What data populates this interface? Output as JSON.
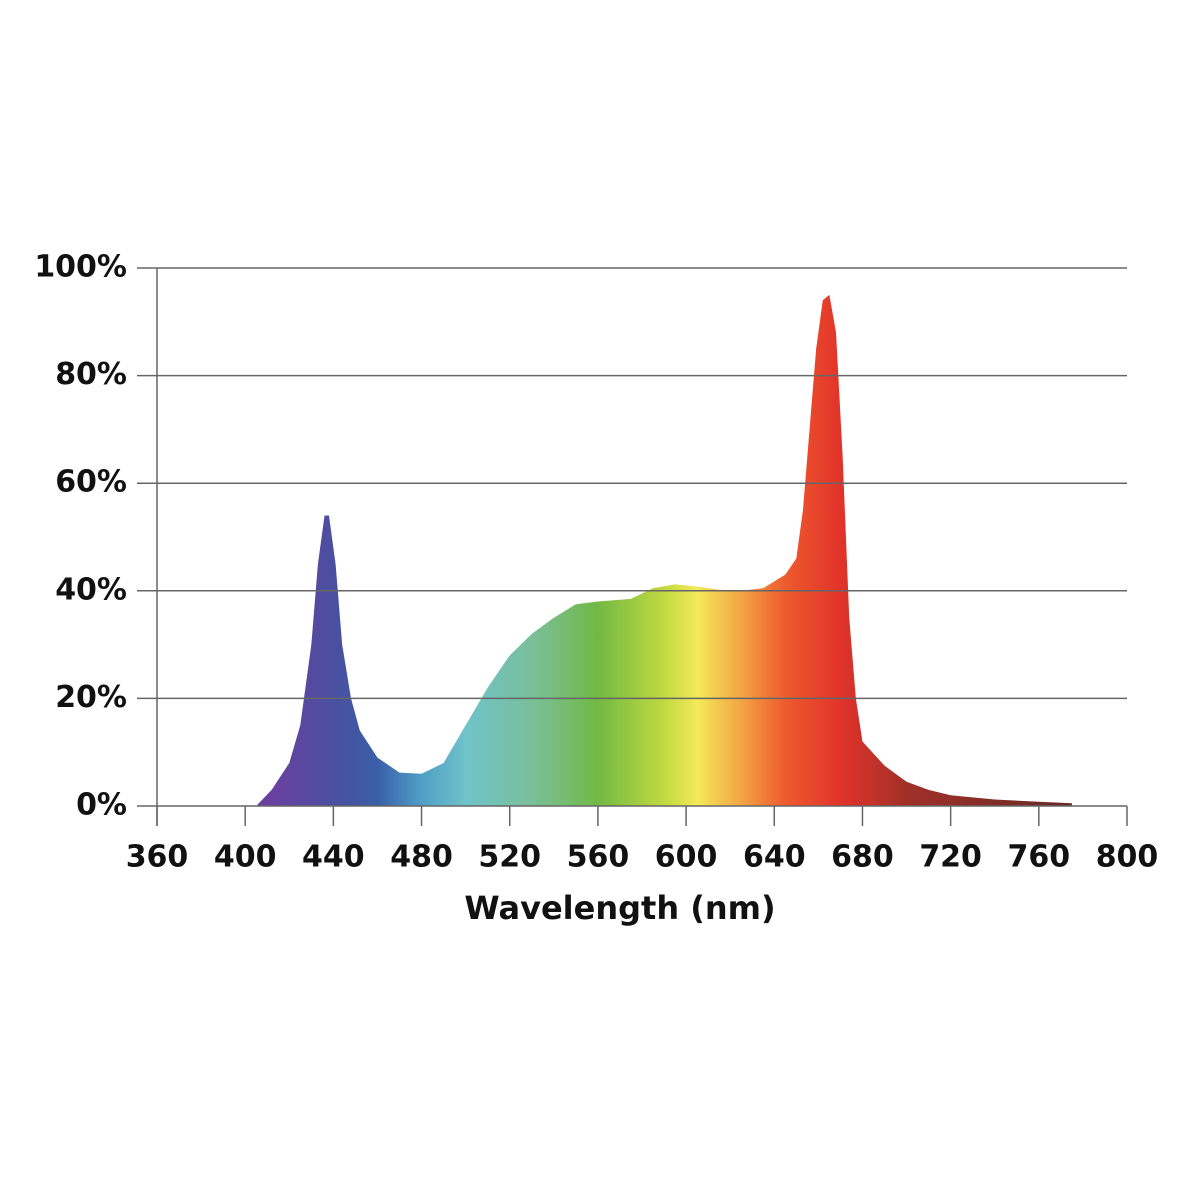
{
  "chart_data": {
    "type": "area",
    "x_label": "Wavelength (nm)",
    "x": [
      405,
      412,
      420,
      425,
      430,
      433,
      436,
      438,
      441,
      444,
      448,
      452,
      460,
      470,
      480,
      490,
      500,
      510,
      520,
      530,
      540,
      550,
      560,
      575,
      585,
      595,
      605,
      615,
      625,
      635,
      645,
      650,
      653,
      656,
      659,
      662,
      665,
      668,
      671,
      674,
      677,
      680,
      690,
      700,
      710,
      720,
      740,
      760,
      775
    ],
    "values": [
      0,
      3,
      8,
      15,
      30,
      45,
      54,
      54,
      45,
      30,
      20,
      14,
      9,
      6.2,
      6,
      8,
      15,
      22,
      28,
      32,
      35,
      37.5,
      38,
      38.5,
      40.5,
      41.2,
      40.8,
      40.2,
      40,
      40.5,
      43,
      46,
      55,
      70,
      85,
      94,
      95,
      88,
      65,
      35,
      20,
      12,
      7.5,
      4.5,
      3,
      2,
      1.2,
      0.8,
      0.5
    ],
    "xlim": [
      360,
      800
    ],
    "xticks": [
      360,
      400,
      440,
      480,
      520,
      560,
      600,
      640,
      680,
      720,
      760,
      800
    ],
    "ylim": [
      0,
      100
    ],
    "yticks": [
      {
        "value": 0,
        "label": "0%"
      },
      {
        "value": 20,
        "label": "20%"
      },
      {
        "value": 40,
        "label": "40%"
      },
      {
        "value": 60,
        "label": "60%"
      },
      {
        "value": 80,
        "label": "80%"
      },
      {
        "value": 100,
        "label": "100%"
      }
    ],
    "grid": true,
    "color_stops": [
      {
        "x": 410,
        "color": "#6b3fa0"
      },
      {
        "x": 440,
        "color": "#4a4fa0"
      },
      {
        "x": 460,
        "color": "#3a5fa8"
      },
      {
        "x": 480,
        "color": "#4f9fc6"
      },
      {
        "x": 500,
        "color": "#6fc3c9"
      },
      {
        "x": 530,
        "color": "#7abf9a"
      },
      {
        "x": 560,
        "color": "#72b944"
      },
      {
        "x": 590,
        "color": "#c2d940"
      },
      {
        "x": 605,
        "color": "#f4e959"
      },
      {
        "x": 625,
        "color": "#f2a544"
      },
      {
        "x": 645,
        "color": "#ee5a2e"
      },
      {
        "x": 670,
        "color": "#e2332a"
      },
      {
        "x": 700,
        "color": "#a03028"
      },
      {
        "x": 770,
        "color": "#6b2a28"
      }
    ]
  }
}
